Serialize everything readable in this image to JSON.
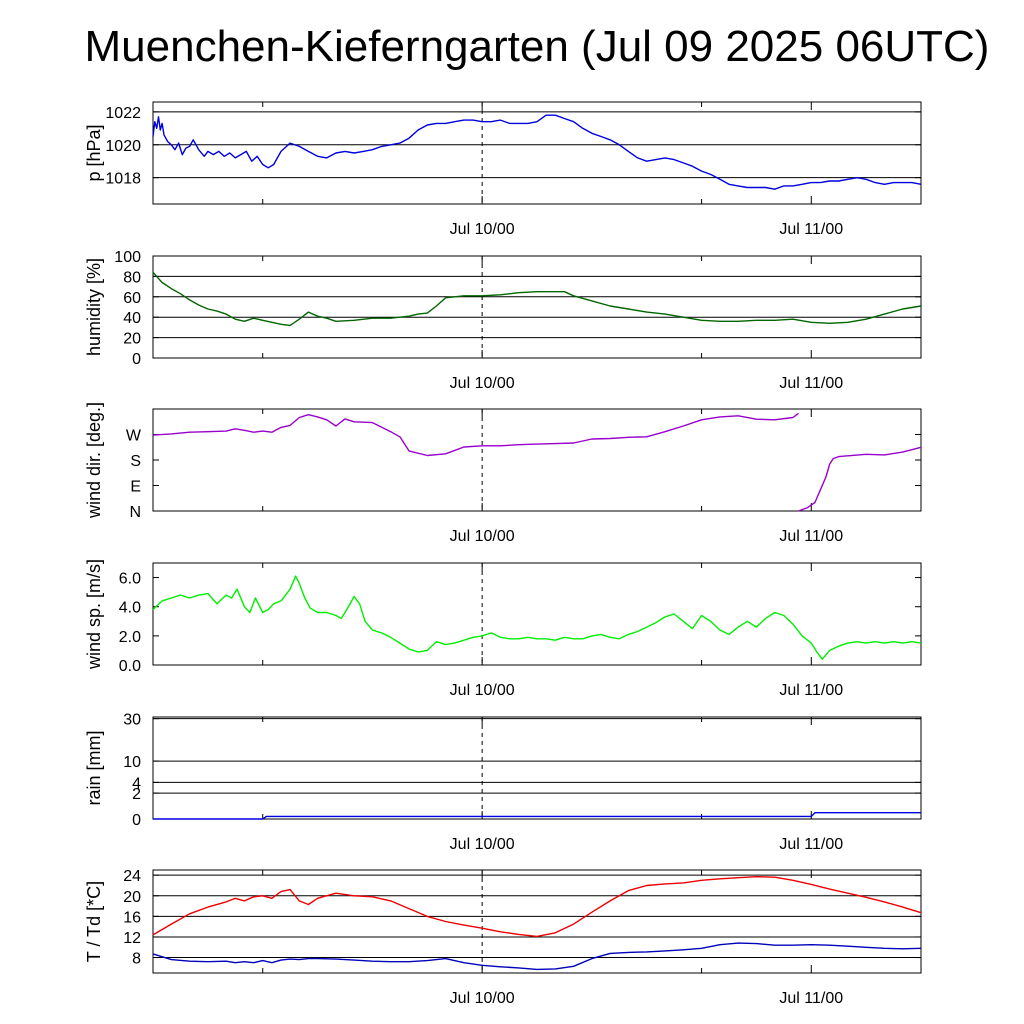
{
  "title": "Muenchen-Kieferngarten (Jul 09 2025 06UTC)",
  "x_tick_labels": [
    "Jul 10/00",
    "Jul 11/00"
  ],
  "colors": {
    "pressure": "#0000dd",
    "humidity": "#006600",
    "wind_dir": "#9900cc",
    "wind_speed": "#00ee00",
    "rain": "#0000dd",
    "temperature": "#ee0000",
    "dewpoint": "#0000bb"
  },
  "chart_data": [
    {
      "type": "line",
      "ylabel": "p [hPa]",
      "x_unit": "hours since Jul 09 06UTC",
      "xlim": [
        0,
        42
      ],
      "ylim": [
        1016.4,
        1022.6
      ],
      "yticks": [
        1018,
        1020,
        1022
      ],
      "ytick_labels": [
        "1018",
        "1020",
        "1022"
      ],
      "grid_y": [
        1018,
        1020,
        1022
      ],
      "series": [
        {
          "color_key": "pressure",
          "x": [
            0,
            0.1,
            0.2,
            0.3,
            0.4,
            0.5,
            0.6,
            0.8,
            1.0,
            1.2,
            1.4,
            1.6,
            1.8,
            2.0,
            2.2,
            2.5,
            2.8,
            3.0,
            3.3,
            3.6,
            3.9,
            4.2,
            4.5,
            4.8,
            5.1,
            5.4,
            5.7,
            6.0,
            6.3,
            6.6,
            7.0,
            7.5,
            8.0,
            8.5,
            9.0,
            9.5,
            10.0,
            10.5,
            11.0,
            11.5,
            12.0,
            12.5,
            13.0,
            13.5,
            14.0,
            14.5,
            15.0,
            15.5,
            16.0,
            16.5,
            17.0,
            17.5,
            18.0,
            18.5,
            19.0,
            19.5,
            20.0,
            20.5,
            21.0,
            21.5,
            22.0,
            22.5,
            23.0,
            23.5,
            24.0,
            24.5,
            25.0,
            25.5,
            26.0,
            26.5,
            27.0,
            27.5,
            28.0,
            28.5,
            29.0,
            29.5,
            30.0,
            30.5,
            31.0,
            31.5,
            32.0,
            32.5,
            33.0,
            33.5,
            34.0,
            34.5,
            35.0,
            35.5,
            36.0,
            36.5,
            37.0,
            37.5,
            38.0,
            38.5,
            39.0,
            39.5,
            40.0,
            40.5,
            41.0,
            41.5,
            42.0
          ],
          "y": [
            1020.5,
            1021.4,
            1021.0,
            1021.7,
            1020.9,
            1021.3,
            1020.6,
            1020.2,
            1020.0,
            1019.7,
            1020.1,
            1019.4,
            1019.8,
            1019.9,
            1020.3,
            1019.7,
            1019.3,
            1019.6,
            1019.4,
            1019.6,
            1019.3,
            1019.5,
            1019.2,
            1019.4,
            1019.6,
            1019.0,
            1019.3,
            1018.8,
            1018.6,
            1018.8,
            1019.6,
            1020.1,
            1019.9,
            1019.6,
            1019.3,
            1019.2,
            1019.5,
            1019.6,
            1019.5,
            1019.6,
            1019.7,
            1019.9,
            1020.0,
            1020.1,
            1020.4,
            1020.9,
            1021.2,
            1021.3,
            1021.3,
            1021.4,
            1021.5,
            1021.5,
            1021.4,
            1021.4,
            1021.5,
            1021.3,
            1021.3,
            1021.3,
            1021.4,
            1021.8,
            1021.8,
            1021.6,
            1021.4,
            1021.0,
            1020.7,
            1020.5,
            1020.3,
            1020.0,
            1019.6,
            1019.2,
            1019.0,
            1019.1,
            1019.2,
            1019.1,
            1018.9,
            1018.7,
            1018.4,
            1018.2,
            1017.9,
            1017.6,
            1017.5,
            1017.4,
            1017.4,
            1017.4,
            1017.3,
            1017.5,
            1017.5,
            1017.6,
            1017.7,
            1017.7,
            1017.8,
            1017.8,
            1017.9,
            1018.0,
            1017.9,
            1017.7,
            1017.6,
            1017.7,
            1017.7,
            1017.7,
            1017.6
          ]
        }
      ]
    },
    {
      "type": "line",
      "ylabel": "humidity [%]",
      "x_unit": "hours since Jul 09 06UTC",
      "xlim": [
        0,
        42
      ],
      "ylim": [
        0,
        100
      ],
      "yticks": [
        0,
        20,
        40,
        60,
        80,
        100
      ],
      "ytick_labels": [
        "0",
        "20",
        "40",
        "60",
        "80",
        "100"
      ],
      "grid_y": [
        20,
        40,
        60,
        80
      ],
      "series": [
        {
          "color_key": "humidity",
          "x": [
            0,
            0.5,
            1.0,
            1.5,
            2.0,
            2.5,
            3.0,
            3.5,
            4.0,
            4.5,
            5.0,
            5.5,
            6.0,
            6.5,
            7.0,
            7.5,
            8.0,
            8.5,
            9.0,
            9.5,
            10.0,
            11.0,
            12.0,
            13.0,
            14.0,
            14.5,
            15.0,
            15.5,
            16.0,
            17.0,
            18.0,
            19.0,
            20.0,
            21.0,
            22.0,
            22.5,
            23.0,
            24.0,
            25.0,
            26.0,
            27.0,
            28.0,
            29.0,
            30.0,
            31.0,
            32.0,
            33.0,
            34.0,
            35.0,
            36.0,
            37.0,
            38.0,
            39.0,
            40.0,
            41.0,
            42.0
          ],
          "y": [
            84,
            74,
            68,
            63,
            57,
            52,
            48,
            46,
            43,
            38,
            36,
            39,
            37,
            35,
            33,
            32,
            38,
            45,
            41,
            39,
            36,
            37,
            39,
            39,
            41,
            43,
            44,
            51,
            59,
            61,
            61,
            62,
            64,
            65,
            65,
            65,
            61,
            56,
            51,
            48,
            45,
            43,
            40,
            37,
            36,
            36,
            37,
            37,
            38,
            35,
            34,
            35,
            38,
            43,
            48,
            51
          ]
        }
      ]
    },
    {
      "type": "line",
      "ylabel": "wind dir. [deg.]",
      "x_unit": "hours since Jul 09 06UTC",
      "xlim": [
        0,
        42
      ],
      "ylim": [
        0,
        360
      ],
      "yticks": [
        0,
        90,
        180,
        270
      ],
      "ytick_labels": [
        "N",
        "E",
        "S",
        "W"
      ],
      "grid_y": [],
      "series": [
        {
          "color_key": "wind_dir",
          "x": [
            0,
            1.0,
            2.0,
            3.0,
            4.0,
            4.5,
            5.0,
            5.5,
            6.0,
            6.5,
            7.0,
            7.5,
            8.0,
            8.5,
            9.0,
            9.5,
            10.0,
            10.5,
            11.0,
            12.0,
            13.0,
            13.5,
            14.0,
            15.0,
            16.0,
            17.0,
            18.0,
            19.0,
            20.0,
            21.0,
            22.0,
            23.0,
            24.0,
            25.0,
            26.0,
            27.0,
            28.0,
            29.0,
            30.0,
            31.0,
            32.0,
            33.0,
            34.0,
            35.0,
            35.3
          ],
          "y": [
            268,
            272,
            278,
            280,
            282,
            290,
            285,
            278,
            282,
            278,
            295,
            302,
            330,
            340,
            332,
            322,
            300,
            325,
            315,
            312,
            280,
            262,
            212,
            196,
            202,
            226,
            230,
            230,
            234,
            236,
            238,
            240,
            254,
            256,
            260,
            262,
            280,
            300,
            322,
            332,
            336,
            324,
            322,
            330,
            345
          ]
        },
        {
          "color_key": "wind_dir",
          "x": [
            35.3,
            35.8,
            36.2,
            36.5,
            36.8,
            37.0,
            37.2,
            37.5,
            38.0,
            39.0,
            40.0,
            41.0,
            42.0
          ],
          "y": [
            0,
            12,
            30,
            75,
            120,
            165,
            185,
            192,
            195,
            200,
            198,
            208,
            225
          ]
        }
      ]
    },
    {
      "type": "line",
      "ylabel": "wind sp. [m/s]",
      "x_unit": "hours since Jul 09 06UTC",
      "xlim": [
        0,
        42
      ],
      "ylim": [
        0,
        7
      ],
      "yticks": [
        0,
        2,
        4,
        6
      ],
      "ytick_labels": [
        "0.0",
        "2.0",
        "4.0",
        "6.0"
      ],
      "grid_y": [],
      "series": [
        {
          "color_key": "wind_speed",
          "x": [
            0,
            0.5,
            1.0,
            1.5,
            2.0,
            2.5,
            3.0,
            3.5,
            4.0,
            4.3,
            4.6,
            5.0,
            5.3,
            5.6,
            6.0,
            6.3,
            6.6,
            7.0,
            7.5,
            7.8,
            8.0,
            8.3,
            8.6,
            9.0,
            9.5,
            10.0,
            10.3,
            10.6,
            11.0,
            11.3,
            11.6,
            12.0,
            12.5,
            13.0,
            13.5,
            14.0,
            14.5,
            15.0,
            15.5,
            16.0,
            16.5,
            17.0,
            17.5,
            18.0,
            18.5,
            19.0,
            19.5,
            20.0,
            20.5,
            21.0,
            21.5,
            22.0,
            22.5,
            23.0,
            23.5,
            24.0,
            24.5,
            25.0,
            25.5,
            26.0,
            26.5,
            27.0,
            27.5,
            28.0,
            28.5,
            29.0,
            29.5,
            30.0,
            30.5,
            31.0,
            31.5,
            32.0,
            32.5,
            33.0,
            33.5,
            34.0,
            34.5,
            35.0,
            35.5,
            36.0,
            36.3,
            36.6,
            37.0,
            37.5,
            38.0,
            38.5,
            39.0,
            39.5,
            40.0,
            40.5,
            41.0,
            41.5,
            42.0
          ],
          "y": [
            3.8,
            4.4,
            4.6,
            4.8,
            4.6,
            4.8,
            4.9,
            4.2,
            4.8,
            4.6,
            5.2,
            4.0,
            3.6,
            4.6,
            3.6,
            3.8,
            4.2,
            4.4,
            5.2,
            6.1,
            5.6,
            4.6,
            3.9,
            3.6,
            3.6,
            3.4,
            3.2,
            3.8,
            4.7,
            4.2,
            3.0,
            2.4,
            2.2,
            1.9,
            1.5,
            1.1,
            0.9,
            1.0,
            1.6,
            1.4,
            1.5,
            1.7,
            1.9,
            2.0,
            2.2,
            1.9,
            1.8,
            1.8,
            1.9,
            1.8,
            1.8,
            1.7,
            1.9,
            1.8,
            1.8,
            2.0,
            2.1,
            1.9,
            1.8,
            2.1,
            2.3,
            2.6,
            2.9,
            3.3,
            3.5,
            3.0,
            2.5,
            3.4,
            3.0,
            2.4,
            2.1,
            2.6,
            3.0,
            2.6,
            3.2,
            3.6,
            3.4,
            2.8,
            2.0,
            1.5,
            0.9,
            0.4,
            1.0,
            1.3,
            1.5,
            1.6,
            1.5,
            1.6,
            1.5,
            1.6,
            1.5,
            1.6,
            1.5
          ]
        }
      ]
    },
    {
      "type": "line",
      "ylabel": "rain [mm]",
      "x_unit": "hours since Jul 09 06UTC",
      "xlim": [
        0,
        42
      ],
      "yscale": "sqrt",
      "ylim": [
        0,
        31
      ],
      "yticks": [
        0,
        2,
        4,
        10,
        30
      ],
      "ytick_labels": [
        "0",
        "2",
        "4",
        "10",
        "30"
      ],
      "grid_y": [
        2,
        4,
        10,
        30
      ],
      "series": [
        {
          "color_key": "rain",
          "x": [
            0,
            6,
            6.2,
            36,
            36.2,
            42
          ],
          "y": [
            0,
            0,
            0.02,
            0.02,
            0.12,
            0.12
          ]
        }
      ]
    },
    {
      "type": "line",
      "ylabel": "T / Td [*C]",
      "x_unit": "hours since Jul 09 06UTC",
      "xlim": [
        0,
        42
      ],
      "ylim": [
        5,
        25
      ],
      "yticks": [
        8,
        12,
        16,
        20,
        24
      ],
      "ytick_labels": [
        "8",
        "12",
        "16",
        "20",
        "24"
      ],
      "grid_y": [
        8,
        12,
        16,
        20,
        24
      ],
      "series": [
        {
          "color_key": "temperature",
          "x": [
            0,
            1.0,
            2.0,
            3.0,
            4.0,
            4.5,
            5.0,
            5.5,
            6.0,
            6.5,
            7.0,
            7.5,
            8.0,
            8.5,
            9.0,
            10.0,
            11.0,
            12.0,
            13.0,
            14.0,
            15.0,
            16.0,
            17.0,
            18.0,
            19.0,
            20.0,
            21.0,
            22.0,
            23.0,
            24.0,
            25.0,
            26.0,
            27.0,
            28.0,
            29.0,
            30.0,
            31.0,
            32.0,
            33.0,
            34.0,
            35.0,
            36.0,
            37.0,
            38.0,
            39.0,
            40.0,
            41.0,
            42.0
          ],
          "y": [
            12.4,
            14.5,
            16.5,
            17.8,
            18.8,
            19.5,
            19.0,
            19.8,
            20.0,
            19.5,
            20.8,
            21.2,
            19.0,
            18.3,
            19.5,
            20.5,
            20.0,
            19.8,
            19.0,
            17.5,
            16.0,
            15.0,
            14.3,
            13.7,
            13.0,
            12.5,
            12.1,
            12.8,
            14.5,
            16.8,
            19.0,
            21.0,
            22.0,
            22.3,
            22.5,
            23.0,
            23.3,
            23.5,
            23.7,
            23.6,
            23.0,
            22.2,
            21.3,
            20.5,
            19.7,
            18.8,
            17.8,
            16.7
          ]
        },
        {
          "color_key": "dewpoint",
          "x": [
            0,
            1.0,
            2.0,
            3.0,
            4.0,
            4.5,
            5.0,
            5.5,
            6.0,
            6.5,
            7.0,
            7.5,
            8.0,
            8.5,
            9.0,
            10.0,
            11.0,
            12.0,
            13.0,
            14.0,
            15.0,
            16.0,
            17.0,
            18.0,
            19.0,
            20.0,
            21.0,
            22.0,
            23.0,
            24.0,
            25.0,
            26.0,
            27.0,
            28.0,
            29.0,
            30.0,
            31.0,
            32.0,
            33.0,
            34.0,
            35.0,
            36.0,
            37.0,
            38.0,
            39.0,
            40.0,
            41.0,
            42.0
          ],
          "y": [
            8.7,
            7.6,
            7.3,
            7.2,
            7.3,
            7.0,
            7.2,
            7.0,
            7.4,
            7.0,
            7.5,
            7.7,
            7.6,
            7.8,
            7.8,
            7.7,
            7.5,
            7.3,
            7.2,
            7.2,
            7.4,
            7.8,
            7.0,
            6.5,
            6.2,
            6.0,
            5.7,
            5.8,
            6.3,
            7.8,
            8.8,
            9.0,
            9.1,
            9.3,
            9.5,
            9.8,
            10.5,
            10.8,
            10.7,
            10.4,
            10.4,
            10.5,
            10.4,
            10.2,
            10.0,
            9.8,
            9.7,
            9.8
          ]
        }
      ]
    }
  ]
}
